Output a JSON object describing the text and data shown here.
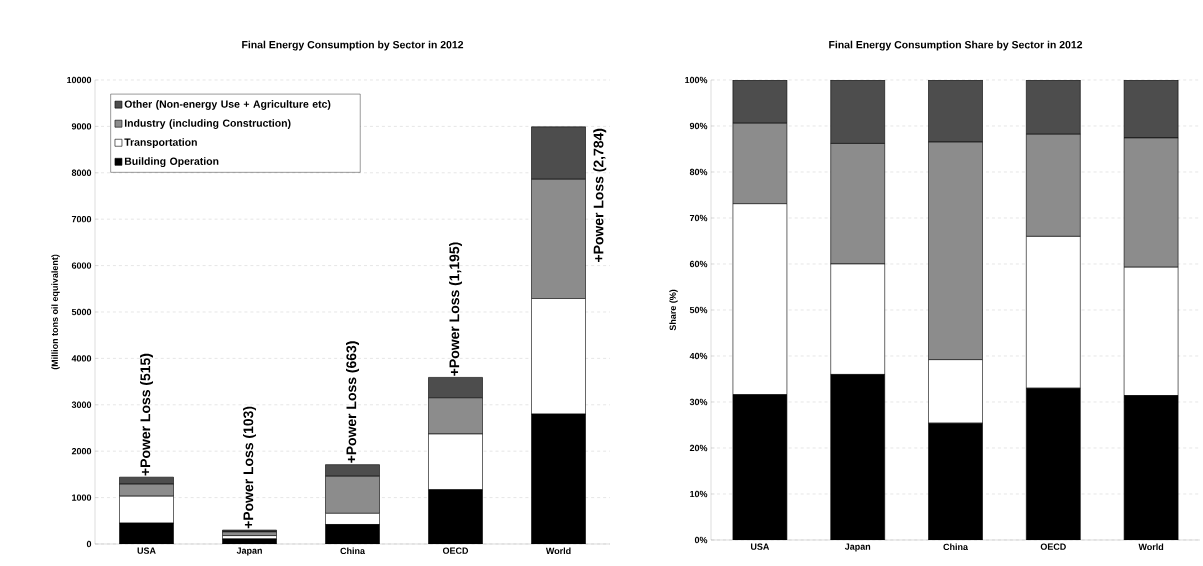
{
  "chart_data": [
    {
      "type": "bar",
      "stacked": true,
      "title": "Final Energy Consumption by Sector in 2012",
      "ylabel": "(Million tons oil equivalent)",
      "categories": [
        "USA",
        "Japan",
        "China",
        "OECD",
        "World"
      ],
      "series": [
        {
          "name": "Building Operation",
          "color": "#000000",
          "values": [
            450,
            110,
            420,
            1170,
            2800
          ]
        },
        {
          "name": "Transportation",
          "color": "#ffffff",
          "values": [
            580,
            70,
            240,
            1200,
            2490
          ]
        },
        {
          "name": "Industry (including Construction)",
          "color": "#8c8c8c",
          "values": [
            260,
            80,
            800,
            780,
            2570
          ]
        },
        {
          "name": "Other (Non-energy Use + Agriculture etc)",
          "color": "#4d4d4d",
          "values": [
            150,
            40,
            250,
            440,
            1130
          ]
        }
      ],
      "ylim": [
        0,
        10000
      ],
      "yticks": [
        0,
        1000,
        2000,
        3000,
        4000,
        5000,
        6000,
        7000,
        8000,
        9000,
        10000
      ],
      "grid": "y",
      "legend": "top left",
      "annotations": [
        "+Power Loss (515)",
        "+Power Loss (103)",
        "+Power Loss (663)",
        "+Power Loss (1,195)",
        "+Power Loss (2,784)"
      ]
    },
    {
      "type": "bar",
      "stacked": true,
      "title": "Final Energy Consumption Share by Sector in 2012",
      "ylabel": "Share (%)",
      "categories": [
        "USA",
        "Japan",
        "China",
        "OECD",
        "World"
      ],
      "series": [
        {
          "color": "#000000",
          "values": [
            31.6,
            36,
            25.4,
            33,
            31.4
          ]
        },
        {
          "color": "#ffffff",
          "values": [
            41.5,
            24,
            13.8,
            33,
            27.9
          ]
        },
        {
          "color": "#8c8c8c",
          "values": [
            17.5,
            26.2,
            47.3,
            22.2,
            28.1
          ]
        },
        {
          "color": "#4d4d4d",
          "values": [
            9.4,
            13.8,
            13.5,
            11.8,
            12.6
          ]
        }
      ],
      "ylim": [
        0,
        100
      ],
      "yticks": [
        {
          "value": 0,
          "label": "0%"
        },
        {
          "value": 10,
          "label": "10%"
        },
        {
          "value": 20,
          "label": "20%"
        },
        {
          "value": 30,
          "label": "30%"
        },
        {
          "value": 40,
          "label": "40%"
        },
        {
          "value": 50,
          "label": "50%"
        },
        {
          "value": 60,
          "label": "60%"
        },
        {
          "value": 70,
          "label": "70%"
        },
        {
          "value": 80,
          "label": "80%"
        },
        {
          "value": 90,
          "label": "90%"
        },
        {
          "value": 100,
          "label": "100%"
        }
      ],
      "grid": "y"
    }
  ]
}
